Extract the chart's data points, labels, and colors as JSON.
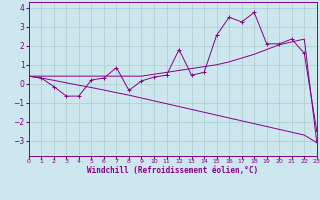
{
  "xlabel": "Windchill (Refroidissement éolien,°C)",
  "bg_color": "#cce8ee",
  "line_color": "#880088",
  "grid_color": "#aacccc",
  "x_values": [
    0,
    1,
    2,
    3,
    4,
    5,
    6,
    7,
    8,
    9,
    10,
    11,
    12,
    13,
    14,
    15,
    16,
    17,
    18,
    19,
    20,
    21,
    22,
    23
  ],
  "y_jagged": [
    0.4,
    0.3,
    -0.15,
    -0.65,
    -0.65,
    0.2,
    0.3,
    0.85,
    -0.35,
    0.15,
    0.35,
    0.45,
    1.8,
    0.45,
    0.6,
    2.55,
    3.5,
    3.25,
    3.75,
    2.1,
    2.1,
    2.35,
    1.6,
    -2.5
  ],
  "y_smooth1": [
    0.4,
    0.4,
    0.4,
    0.4,
    0.4,
    0.4,
    0.4,
    0.4,
    0.4,
    0.4,
    0.5,
    0.6,
    0.7,
    0.8,
    0.9,
    1.0,
    1.15,
    1.35,
    1.55,
    1.8,
    2.05,
    2.2,
    2.35,
    -3.1
  ],
  "y_smooth2": [
    0.4,
    0.3,
    0.18,
    0.05,
    -0.08,
    -0.2,
    -0.33,
    -0.47,
    -0.6,
    -0.75,
    -0.9,
    -1.05,
    -1.2,
    -1.35,
    -1.5,
    -1.65,
    -1.8,
    -1.95,
    -2.1,
    -2.25,
    -2.4,
    -2.55,
    -2.7,
    -3.1
  ],
  "ylim": [
    -3.8,
    4.3
  ],
  "xlim": [
    0,
    23
  ],
  "yticks": [
    -3,
    -2,
    -1,
    0,
    1,
    2,
    3,
    4
  ],
  "xticks": [
    0,
    1,
    2,
    3,
    4,
    5,
    6,
    7,
    8,
    9,
    10,
    11,
    12,
    13,
    14,
    15,
    16,
    17,
    18,
    19,
    20,
    21,
    22,
    23
  ]
}
